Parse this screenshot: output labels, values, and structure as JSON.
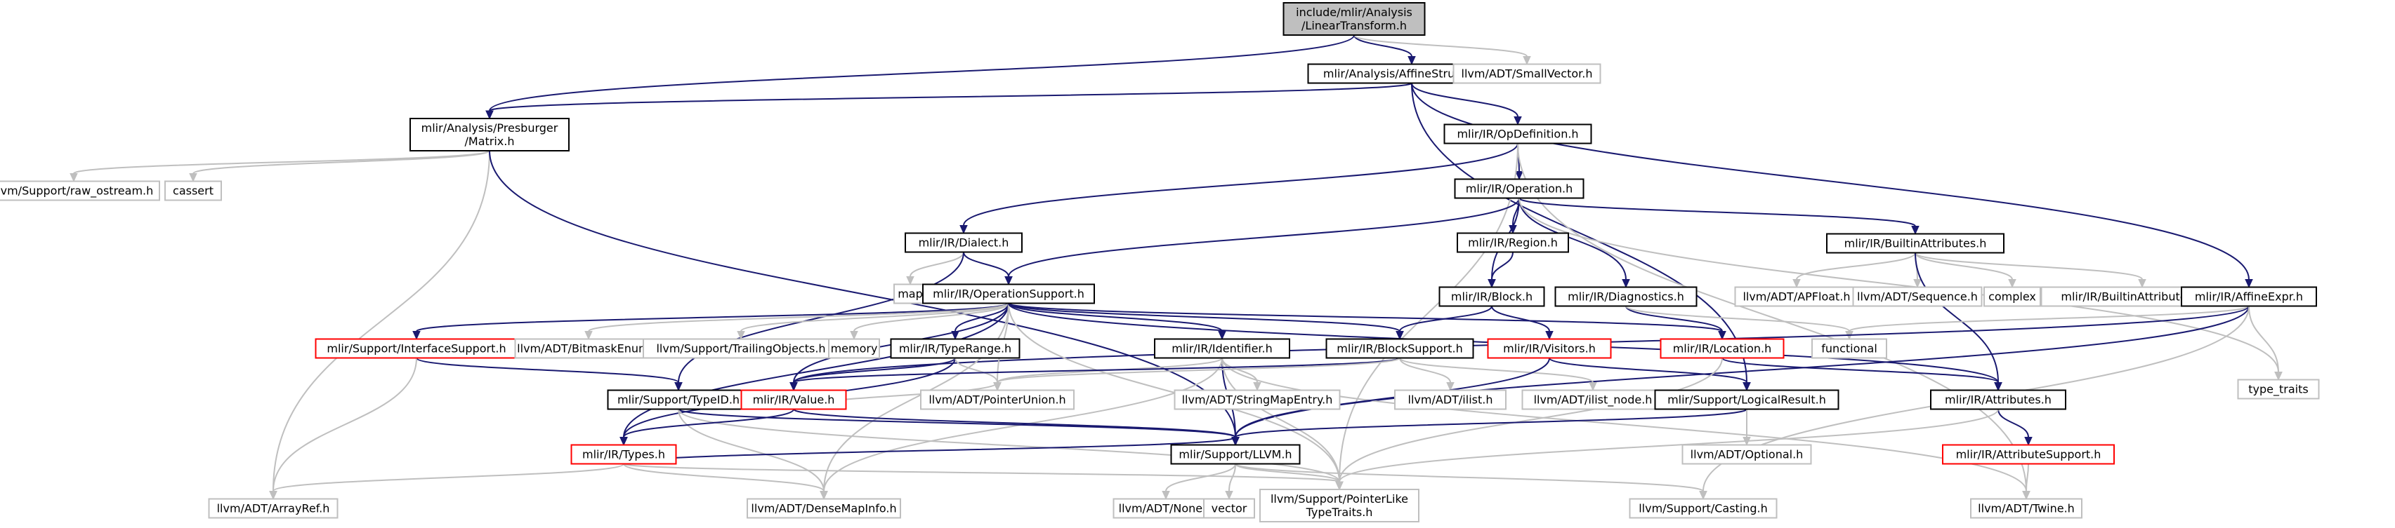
{
  "colors": {
    "root_fill": "#bfbfbf",
    "internal_border": "#000000",
    "partial_border": "#ff0000",
    "external_border": "#bfbfbf",
    "edge": "#191970",
    "external_edge": "#bfbfbf"
  },
  "nodes": [
    {
      "id": "linear",
      "kind": "root",
      "lines": [
        "include/mlir/Analysis",
        "/LinearTransform.h"
      ]
    },
    {
      "id": "affstruct",
      "kind": "internal",
      "lines": [
        "mlir/Analysis/AffineStructures.h"
      ]
    },
    {
      "id": "smallvec",
      "kind": "external",
      "lines": [
        "llvm/ADT/SmallVector.h"
      ]
    },
    {
      "id": "presb",
      "kind": "internal",
      "lines": [
        "mlir/Analysis/Presburger",
        "/Matrix.h"
      ]
    },
    {
      "id": "opdef",
      "kind": "internal",
      "lines": [
        "mlir/IR/OpDefinition.h"
      ]
    },
    {
      "id": "rawos",
      "kind": "external",
      "lines": [
        "llvm/Support/raw_ostream.h"
      ]
    },
    {
      "id": "cassert",
      "kind": "external",
      "lines": [
        "cassert"
      ]
    },
    {
      "id": "operation",
      "kind": "internal",
      "lines": [
        "mlir/IR/Operation.h"
      ]
    },
    {
      "id": "dialect",
      "kind": "internal",
      "lines": [
        "mlir/IR/Dialect.h"
      ]
    },
    {
      "id": "region",
      "kind": "internal",
      "lines": [
        "mlir/IR/Region.h"
      ]
    },
    {
      "id": "builtinattr",
      "kind": "internal",
      "lines": [
        "mlir/IR/BuiltinAttributes.h"
      ]
    },
    {
      "id": "map",
      "kind": "external",
      "lines": [
        "map"
      ]
    },
    {
      "id": "opsupport",
      "kind": "internal",
      "lines": [
        "mlir/IR/OperationSupport.h"
      ]
    },
    {
      "id": "block",
      "kind": "internal",
      "lines": [
        "mlir/IR/Block.h"
      ]
    },
    {
      "id": "diagnostics",
      "kind": "internal",
      "lines": [
        "mlir/IR/Diagnostics.h"
      ]
    },
    {
      "id": "apfloat",
      "kind": "external",
      "lines": [
        "llvm/ADT/APFloat.h"
      ]
    },
    {
      "id": "sequence",
      "kind": "external",
      "lines": [
        "llvm/ADT/Sequence.h"
      ]
    },
    {
      "id": "complex",
      "kind": "external",
      "lines": [
        "complex"
      ]
    },
    {
      "id": "builtininc",
      "kind": "external",
      "lines": [
        "mlir/IR/BuiltinAttributes.h.inc"
      ]
    },
    {
      "id": "affexpr",
      "kind": "internal",
      "lines": [
        "mlir/IR/AffineExpr.h"
      ]
    },
    {
      "id": "ifacesup",
      "kind": "partial",
      "lines": [
        "mlir/Support/InterfaceSupport.h"
      ]
    },
    {
      "id": "bitmask",
      "kind": "external",
      "lines": [
        "llvm/ADT/BitmaskEnum.h"
      ]
    },
    {
      "id": "trailing",
      "kind": "external",
      "lines": [
        "llvm/Support/TrailingObjects.h"
      ]
    },
    {
      "id": "memory",
      "kind": "external",
      "lines": [
        "memory"
      ]
    },
    {
      "id": "typerange",
      "kind": "internal",
      "lines": [
        "mlir/IR/TypeRange.h"
      ]
    },
    {
      "id": "identifier",
      "kind": "internal",
      "lines": [
        "mlir/IR/Identifier.h"
      ]
    },
    {
      "id": "blocksupport",
      "kind": "internal",
      "lines": [
        "mlir/IR/BlockSupport.h"
      ]
    },
    {
      "id": "visitors",
      "kind": "partial",
      "lines": [
        "mlir/IR/Visitors.h"
      ]
    },
    {
      "id": "location",
      "kind": "partial",
      "lines": [
        "mlir/IR/Location.h"
      ]
    },
    {
      "id": "functional",
      "kind": "external",
      "lines": [
        "functional"
      ]
    },
    {
      "id": "typetraits",
      "kind": "external",
      "lines": [
        "type_traits"
      ]
    },
    {
      "id": "typeid",
      "kind": "internal",
      "lines": [
        "mlir/Support/TypeID.h"
      ]
    },
    {
      "id": "value",
      "kind": "partial",
      "lines": [
        "mlir/IR/Value.h"
      ]
    },
    {
      "id": "ptrunion",
      "kind": "external",
      "lines": [
        "llvm/ADT/PointerUnion.h"
      ]
    },
    {
      "id": "strmapentry",
      "kind": "external",
      "lines": [
        "llvm/ADT/StringMapEntry.h"
      ]
    },
    {
      "id": "ilist",
      "kind": "external",
      "lines": [
        "llvm/ADT/ilist.h"
      ]
    },
    {
      "id": "ilistnode",
      "kind": "external",
      "lines": [
        "llvm/ADT/ilist_node.h"
      ]
    },
    {
      "id": "logicalresult",
      "kind": "internal",
      "lines": [
        "mlir/Support/LogicalResult.h"
      ]
    },
    {
      "id": "attributes",
      "kind": "internal",
      "lines": [
        "mlir/IR/Attributes.h"
      ]
    },
    {
      "id": "types",
      "kind": "partial",
      "lines": [
        "mlir/IR/Types.h"
      ]
    },
    {
      "id": "llvmh",
      "kind": "internal",
      "lines": [
        "mlir/Support/LLVM.h"
      ]
    },
    {
      "id": "optional",
      "kind": "external",
      "lines": [
        "llvm/ADT/Optional.h"
      ]
    },
    {
      "id": "attrsupport",
      "kind": "partial",
      "lines": [
        "mlir/IR/AttributeSupport.h"
      ]
    },
    {
      "id": "arrayref",
      "kind": "external",
      "lines": [
        "llvm/ADT/ArrayRef.h"
      ]
    },
    {
      "id": "densemapinfo",
      "kind": "external",
      "lines": [
        "llvm/ADT/DenseMapInfo.h"
      ]
    },
    {
      "id": "none",
      "kind": "external",
      "lines": [
        "llvm/ADT/None.h"
      ]
    },
    {
      "id": "vector",
      "kind": "external",
      "lines": [
        "vector"
      ]
    },
    {
      "id": "ptrlike",
      "kind": "external",
      "lines": [
        "llvm/Support/PointerLike",
        "TypeTraits.h"
      ]
    },
    {
      "id": "casting",
      "kind": "external",
      "lines": [
        "llvm/Support/Casting.h"
      ]
    },
    {
      "id": "twine",
      "kind": "external",
      "lines": [
        "llvm/ADT/Twine.h"
      ]
    }
  ],
  "edges": [
    [
      "linear",
      "affstruct"
    ],
    [
      "linear",
      "smallvec"
    ],
    [
      "linear",
      "presb"
    ],
    [
      "affstruct",
      "presb"
    ],
    [
      "affstruct",
      "opdef"
    ],
    [
      "affstruct",
      "affexpr"
    ],
    [
      "affstruct",
      "logicalresult"
    ],
    [
      "presb",
      "rawos"
    ],
    [
      "presb",
      "cassert"
    ],
    [
      "presb",
      "arrayref"
    ],
    [
      "presb",
      "llvmh"
    ],
    [
      "opdef",
      "operation"
    ],
    [
      "opdef",
      "dialect"
    ],
    [
      "opdef",
      "twine"
    ],
    [
      "opdef",
      "ptrlike"
    ],
    [
      "operation",
      "region"
    ],
    [
      "operation",
      "block"
    ],
    [
      "operation",
      "diagnostics"
    ],
    [
      "operation",
      "builtinattr"
    ],
    [
      "operation",
      "opsupport"
    ],
    [
      "operation",
      "typetraits"
    ],
    [
      "dialect",
      "map"
    ],
    [
      "dialect",
      "opsupport"
    ],
    [
      "dialect",
      "typeid"
    ],
    [
      "region",
      "block"
    ],
    [
      "block",
      "blocksupport"
    ],
    [
      "block",
      "visitors"
    ],
    [
      "builtinattr",
      "apfloat"
    ],
    [
      "builtinattr",
      "sequence"
    ],
    [
      "builtinattr",
      "complex"
    ],
    [
      "builtinattr",
      "builtininc"
    ],
    [
      "builtinattr",
      "attributes"
    ],
    [
      "diagnostics",
      "location"
    ],
    [
      "diagnostics",
      "functional"
    ],
    [
      "affexpr",
      "functional"
    ],
    [
      "affexpr",
      "typetraits"
    ],
    [
      "affexpr",
      "value"
    ],
    [
      "affexpr",
      "llvmh"
    ],
    [
      "affexpr",
      "casting"
    ],
    [
      "opsupport",
      "ifacesup"
    ],
    [
      "opsupport",
      "bitmask"
    ],
    [
      "opsupport",
      "trailing"
    ],
    [
      "opsupport",
      "memory"
    ],
    [
      "opsupport",
      "typerange"
    ],
    [
      "opsupport",
      "identifier"
    ],
    [
      "opsupport",
      "blocksupport"
    ],
    [
      "opsupport",
      "location"
    ],
    [
      "opsupport",
      "value"
    ],
    [
      "opsupport",
      "types"
    ],
    [
      "opsupport",
      "ptrunion"
    ],
    [
      "opsupport",
      "densemapinfo"
    ],
    [
      "opsupport",
      "ptrlike"
    ],
    [
      "opsupport",
      "attributes"
    ],
    [
      "ifacesup",
      "typeid"
    ],
    [
      "ifacesup",
      "arrayref"
    ],
    [
      "typerange",
      "value"
    ],
    [
      "typerange",
      "types"
    ],
    [
      "typerange",
      "ptrunion"
    ],
    [
      "identifier",
      "strmapentry"
    ],
    [
      "identifier",
      "ptrunion"
    ],
    [
      "identifier",
      "llvmh"
    ],
    [
      "identifier",
      "densemapinfo"
    ],
    [
      "identifier",
      "ptrlike"
    ],
    [
      "identifier",
      "twine"
    ],
    [
      "blocksupport",
      "value"
    ],
    [
      "blocksupport",
      "ilist"
    ],
    [
      "blocksupport",
      "ilistnode"
    ],
    [
      "blocksupport",
      "ptrunion"
    ],
    [
      "visitors",
      "logicalresult"
    ],
    [
      "visitors",
      "llvmh"
    ],
    [
      "location",
      "attributes"
    ],
    [
      "location",
      "ptrlike"
    ],
    [
      "typeid",
      "llvmh"
    ],
    [
      "typeid",
      "densemapinfo"
    ],
    [
      "typeid",
      "ptrlike"
    ],
    [
      "value",
      "types"
    ],
    [
      "value",
      "ptrunion"
    ],
    [
      "value",
      "llvmh"
    ],
    [
      "logicalresult",
      "llvmh"
    ],
    [
      "logicalresult",
      "optional"
    ],
    [
      "attributes",
      "attrsupport"
    ],
    [
      "attributes",
      "ptrlike"
    ],
    [
      "types",
      "arrayref"
    ],
    [
      "types",
      "densemapinfo"
    ],
    [
      "types",
      "llvmh"
    ],
    [
      "types",
      "ptrlike"
    ],
    [
      "attrsupport",
      "twine"
    ],
    [
      "llvmh",
      "none"
    ],
    [
      "llvmh",
      "vector"
    ],
    [
      "llvmh",
      "casting"
    ],
    [
      "llvmh",
      "ptrlike"
    ]
  ]
}
